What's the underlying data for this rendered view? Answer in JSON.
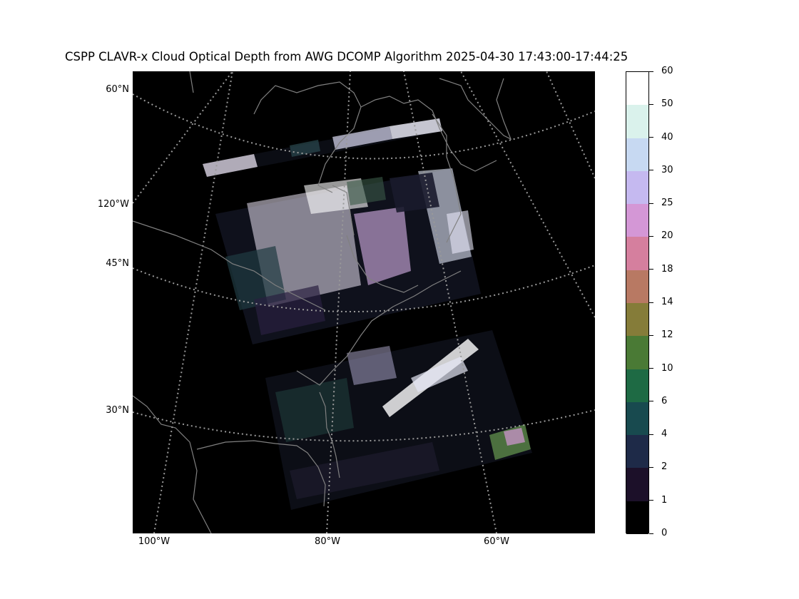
{
  "figure": {
    "title": "CSPP CLAVR-x Cloud Optical Depth from AWG DCOMP Algorithm 2025-04-30 17:43:00-17:44:25"
  },
  "map": {
    "lat_labels": [
      "60°N",
      "120°W",
      "45°N",
      "30°N"
    ],
    "lon_labels": [
      "100°W",
      "80°W",
      "60°W"
    ],
    "gridline_style": "dotted gray",
    "background": "black"
  },
  "colorbar": {
    "tick_labels": [
      "0",
      "1",
      "2",
      "4",
      "6",
      "10",
      "12",
      "14",
      "18",
      "20",
      "25",
      "30",
      "40",
      "50",
      "60"
    ],
    "colors": [
      "#000000",
      "#1c1029",
      "#1e2a48",
      "#184a4f",
      "#1e6a44",
      "#4a7a35",
      "#857c39",
      "#b87963",
      "#d57f9e",
      "#d497d6",
      "#c5b9f0",
      "#c7d9f2",
      "#daf2ec",
      "#ffffff"
    ]
  }
}
